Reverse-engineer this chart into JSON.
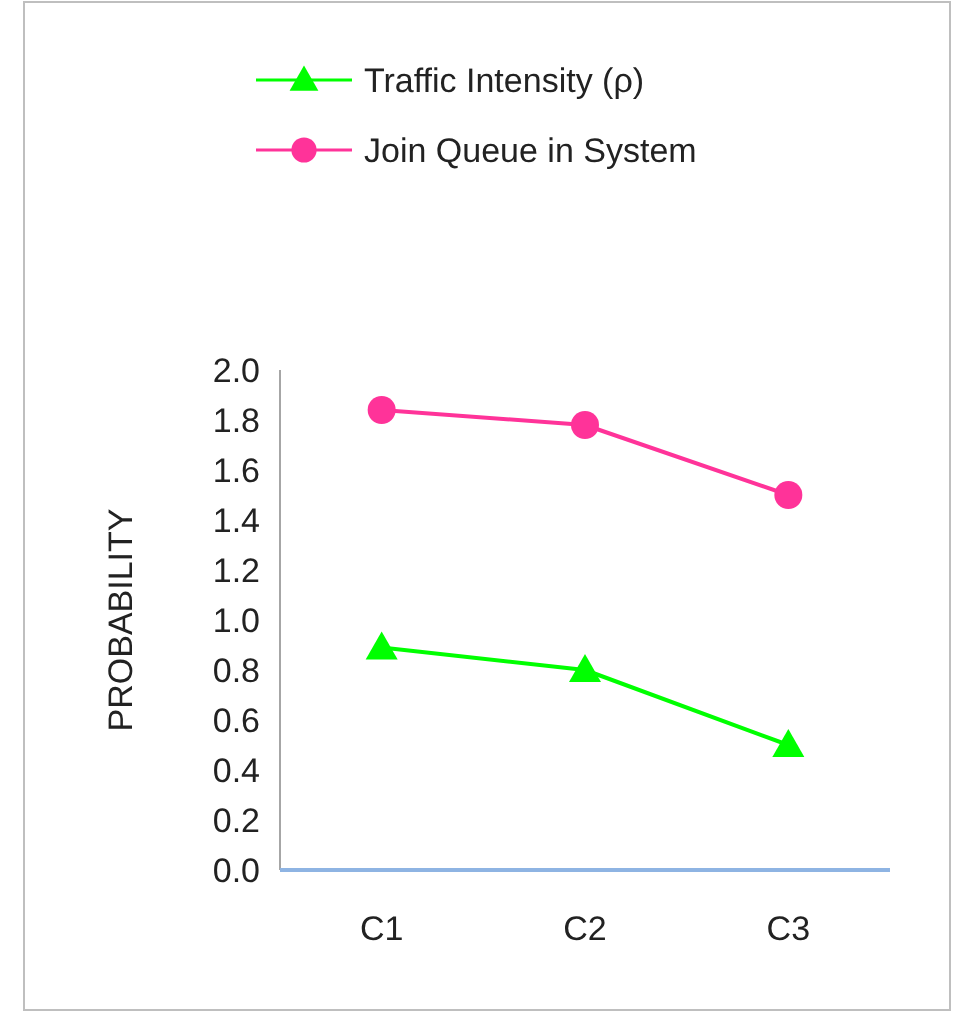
{
  "chart_data": {
    "type": "line",
    "ylabel": "PROBABILITY",
    "categories": [
      "C1",
      "C2",
      "C3"
    ],
    "series": [
      {
        "name": "Traffic Intensity (ρ)",
        "color": "#00ff00",
        "marker": "triangle",
        "values": [
          0.89,
          0.8,
          0.5
        ]
      },
      {
        "name": "Join  Queue in System",
        "color": "#ff3399",
        "marker": "circle",
        "values": [
          1.84,
          1.78,
          1.5
        ]
      }
    ],
    "ylim": [
      0,
      2
    ],
    "yticks": [
      {
        "value": 0,
        "label": "0.0"
      },
      {
        "value": 0.2,
        "label": "0.2"
      },
      {
        "value": 0.4,
        "label": "0.4"
      },
      {
        "value": 0.6,
        "label": "0.6"
      },
      {
        "value": 0.8,
        "label": "0.8"
      },
      {
        "value": 1,
        "label": "1.0"
      },
      {
        "value": 1.2,
        "label": "1.2"
      },
      {
        "value": 1.4,
        "label": "1.4"
      },
      {
        "value": 1.6,
        "label": "1.6"
      },
      {
        "value": 1.8,
        "label": "1.8"
      },
      {
        "value": 2,
        "label": "2.0"
      }
    ],
    "grid": false,
    "legend": "top"
  }
}
